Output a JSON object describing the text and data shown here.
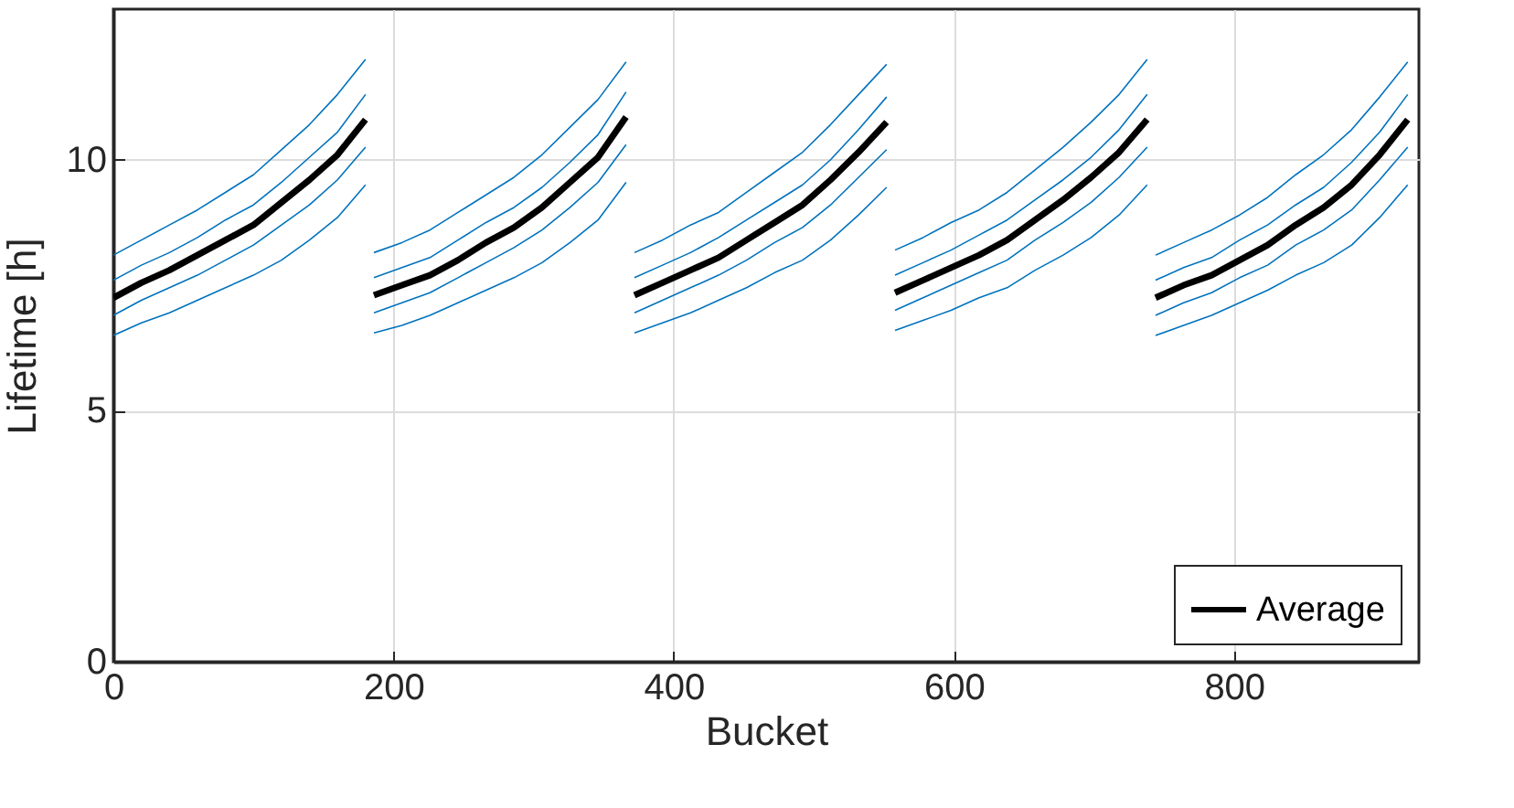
{
  "chart_data": {
    "type": "line",
    "xlabel": "Bucket",
    "ylabel": "Lifetime [h]",
    "x": [
      0,
      20,
      40,
      60,
      80,
      100,
      120,
      140,
      160,
      180,
      183,
      186,
      206,
      226,
      246,
      266,
      286,
      306,
      326,
      346,
      366,
      369,
      372,
      392,
      412,
      432,
      452,
      472,
      492,
      512,
      532,
      552,
      555,
      558,
      578,
      598,
      618,
      638,
      658,
      678,
      698,
      718,
      738,
      741,
      744,
      764,
      784,
      804,
      824,
      844,
      864,
      884,
      904,
      924
    ],
    "series": [
      {
        "color": "#0072bd",
        "values": [
          8.1,
          8.4,
          8.7,
          9.0,
          9.35,
          9.7,
          10.2,
          10.7,
          11.3,
          12.0,
          null,
          8.15,
          8.35,
          8.6,
          8.95,
          9.3,
          9.65,
          10.1,
          10.65,
          11.2,
          11.95,
          null,
          8.15,
          8.4,
          8.7,
          8.95,
          9.35,
          9.75,
          10.15,
          10.7,
          11.3,
          11.9,
          null,
          8.2,
          8.45,
          8.75,
          9.0,
          9.35,
          9.8,
          10.25,
          10.75,
          11.3,
          12.0,
          null,
          8.1,
          8.35,
          8.6,
          8.9,
          9.25,
          9.7,
          10.1,
          10.6,
          11.25,
          11.95
        ]
      },
      {
        "color": "#0072bd",
        "values": [
          7.6,
          7.9,
          8.15,
          8.45,
          8.8,
          9.1,
          9.55,
          10.05,
          10.55,
          11.3,
          null,
          7.65,
          7.85,
          8.05,
          8.4,
          8.75,
          9.05,
          9.45,
          9.95,
          10.5,
          11.35,
          null,
          7.65,
          7.9,
          8.15,
          8.45,
          8.8,
          9.15,
          9.5,
          10.0,
          10.6,
          11.25,
          null,
          7.7,
          7.95,
          8.2,
          8.5,
          8.8,
          9.2,
          9.6,
          10.05,
          10.6,
          11.3,
          null,
          7.6,
          7.85,
          8.05,
          8.4,
          8.7,
          9.1,
          9.45,
          9.95,
          10.55,
          11.3
        ]
      },
      {
        "color": "#0072bd",
        "values": [
          6.9,
          7.2,
          7.45,
          7.7,
          8.0,
          8.3,
          8.7,
          9.1,
          9.6,
          10.25,
          null,
          6.95,
          7.15,
          7.35,
          7.65,
          7.95,
          8.25,
          8.6,
          9.05,
          9.55,
          10.3,
          null,
          6.95,
          7.2,
          7.45,
          7.7,
          8.0,
          8.35,
          8.65,
          9.1,
          9.65,
          10.2,
          null,
          7.0,
          7.25,
          7.5,
          7.75,
          8.0,
          8.4,
          8.75,
          9.15,
          9.65,
          10.25,
          null,
          6.9,
          7.15,
          7.35,
          7.65,
          7.9,
          8.3,
          8.6,
          9.0,
          9.6,
          10.25
        ]
      },
      {
        "color": "#0072bd",
        "values": [
          6.5,
          6.75,
          6.95,
          7.2,
          7.45,
          7.7,
          8.0,
          8.4,
          8.85,
          9.5,
          null,
          6.55,
          6.7,
          6.9,
          7.15,
          7.4,
          7.65,
          7.95,
          8.35,
          8.8,
          9.55,
          null,
          6.55,
          6.75,
          6.95,
          7.2,
          7.45,
          7.75,
          8.0,
          8.4,
          8.9,
          9.45,
          null,
          6.6,
          6.8,
          7.0,
          7.25,
          7.45,
          7.8,
          8.1,
          8.45,
          8.9,
          9.5,
          null,
          6.5,
          6.7,
          6.9,
          7.15,
          7.4,
          7.7,
          7.95,
          8.3,
          8.85,
          9.5
        ]
      },
      {
        "name": "Average",
        "color": "#000000",
        "values": [
          7.25,
          7.55,
          7.8,
          8.1,
          8.4,
          8.7,
          9.15,
          9.6,
          10.1,
          10.8,
          null,
          7.3,
          7.5,
          7.7,
          8.0,
          8.35,
          8.65,
          9.05,
          9.55,
          10.05,
          10.85,
          null,
          7.3,
          7.55,
          7.8,
          8.05,
          8.4,
          8.75,
          9.1,
          9.6,
          10.15,
          10.75,
          null,
          7.35,
          7.6,
          7.85,
          8.1,
          8.4,
          8.8,
          9.2,
          9.65,
          10.15,
          10.8,
          null,
          7.25,
          7.5,
          7.7,
          8.0,
          8.3,
          8.7,
          9.05,
          9.5,
          10.1,
          10.8
        ]
      }
    ],
    "xlim": [
      0,
      932
    ],
    "xticks": [
      0,
      200,
      400,
      600,
      800
    ],
    "ylim": [
      0,
      13
    ],
    "yticks": [
      0,
      5,
      10
    ],
    "grid": true,
    "legend": "bottom right"
  }
}
